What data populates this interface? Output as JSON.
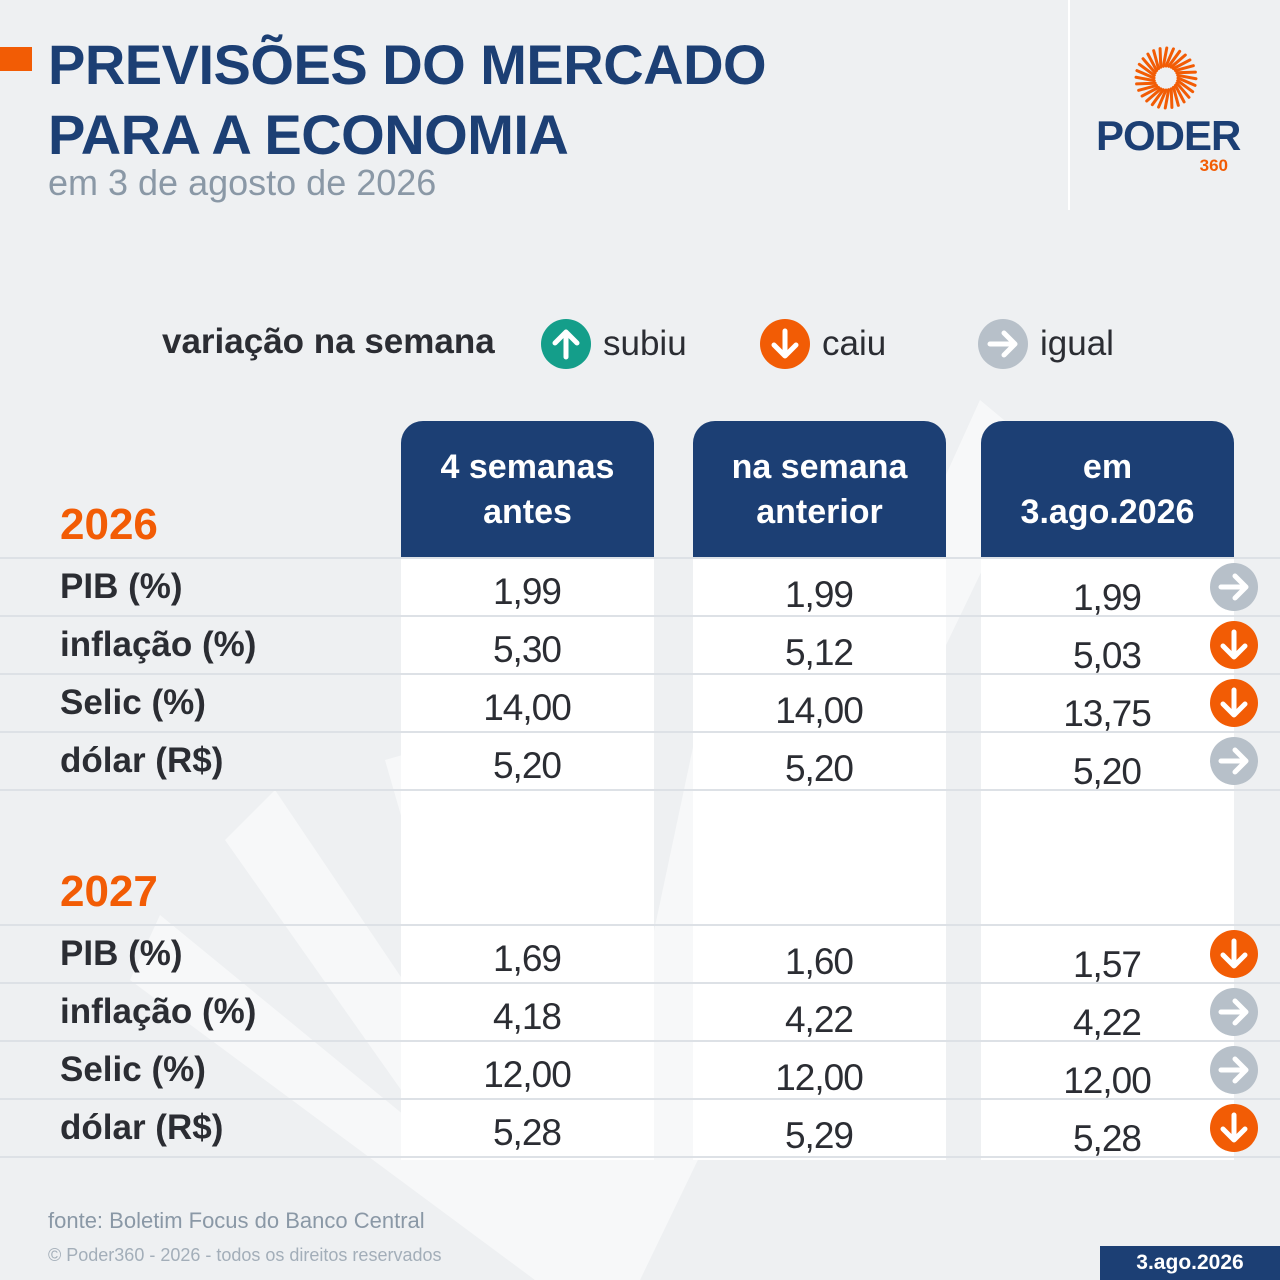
{
  "header": {
    "title_line1": "PREVISÕES DO MERCADO",
    "title_line2": "PARA A ECONOMIA",
    "subtitle": "em 3 de agosto de 2026"
  },
  "logo": {
    "word": "PODER",
    "number": "360"
  },
  "legend": {
    "title": "variação na semana",
    "items": [
      {
        "label": "subiu",
        "icon": "arrow-up-icon",
        "color": "#149e8a"
      },
      {
        "label": "caiu",
        "icon": "arrow-down-icon",
        "color": "#f25c05"
      },
      {
        "label": "igual",
        "icon": "arrow-right-icon",
        "color": "#b7c0c9"
      }
    ]
  },
  "columns": [
    {
      "line1": "4 semanas",
      "line2": "antes"
    },
    {
      "line1": "na semana",
      "line2": "anterior"
    },
    {
      "line1": "em",
      "line2": "3.ago.2026"
    }
  ],
  "colors": {
    "accent": "#f25c05",
    "navy": "#1c3f74",
    "up": "#149e8a",
    "down": "#f25c05",
    "same": "#b7c0c9"
  },
  "chart_data": {
    "type": "table",
    "groups": [
      {
        "year": "2026",
        "rows": [
          {
            "indicator": "PIB (%)",
            "values": [
              "1,99",
              "1,99",
              "1,99"
            ],
            "change": "igual"
          },
          {
            "indicator": "inflação (%)",
            "values": [
              "5,30",
              "5,12",
              "5,03"
            ],
            "change": "caiu"
          },
          {
            "indicator": "Selic (%)",
            "values": [
              "14,00",
              "14,00",
              "13,75"
            ],
            "change": "caiu"
          },
          {
            "indicator": "dólar (R$)",
            "values": [
              "5,20",
              "5,20",
              "5,20"
            ],
            "change": "igual"
          }
        ]
      },
      {
        "year": "2027",
        "rows": [
          {
            "indicator": "PIB (%)",
            "values": [
              "1,69",
              "1,60",
              "1,57"
            ],
            "change": "caiu"
          },
          {
            "indicator": "inflação (%)",
            "values": [
              "4,18",
              "4,22",
              "4,22"
            ],
            "change": "igual"
          },
          {
            "indicator": "Selic (%)",
            "values": [
              "12,00",
              "12,00",
              "12,00"
            ],
            "change": "igual"
          },
          {
            "indicator": "dólar (R$)",
            "values": [
              "5,28",
              "5,29",
              "5,28"
            ],
            "change": "caiu"
          }
        ]
      }
    ]
  },
  "footer": {
    "source": "fonte: Boletim Focus do Banco Central",
    "copyright": "© Poder360 - 2026 - todos os direitos reservados",
    "date": "3.ago.2026"
  }
}
